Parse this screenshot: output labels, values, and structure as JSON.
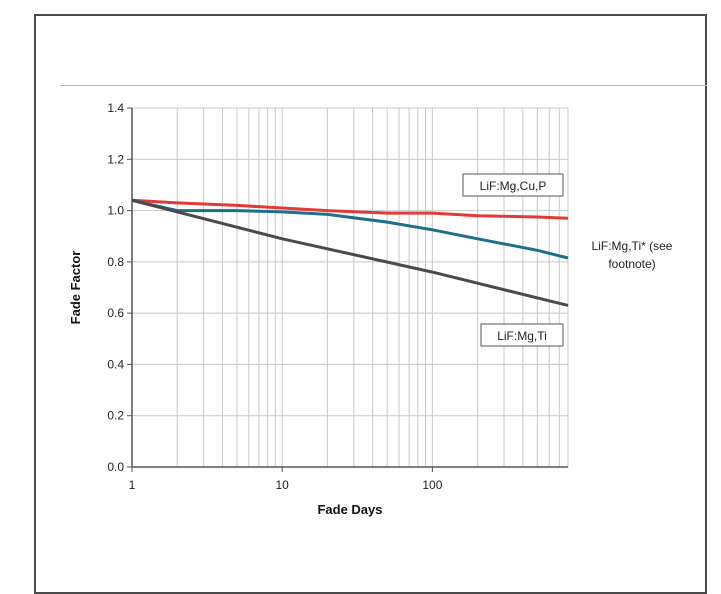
{
  "chart_data": {
    "type": "line",
    "title": "",
    "xlabel": "Fade Days",
    "ylabel": "Fade Factor",
    "x_scale": "log",
    "xlim": [
      1,
      800
    ],
    "ylim": [
      0.0,
      1.4
    ],
    "x_ticks": [
      {
        "value": 1,
        "label": "1"
      },
      {
        "value": 10,
        "label": "10"
      },
      {
        "value": 100,
        "label": "100"
      }
    ],
    "y_ticks": [
      {
        "value": 0.0,
        "label": "0.0"
      },
      {
        "value": 0.2,
        "label": "0.2"
      },
      {
        "value": 0.4,
        "label": "0.4"
      },
      {
        "value": 0.6,
        "label": "0.6"
      },
      {
        "value": 0.8,
        "label": "0.8"
      },
      {
        "value": 1.0,
        "label": "1.0"
      },
      {
        "value": 1.2,
        "label": "1.2"
      },
      {
        "value": 1.4,
        "label": "1.4"
      }
    ],
    "grid": true,
    "series": [
      {
        "name": "LiF:Mg,Cu,P",
        "color": "#e23a36",
        "x": [
          1,
          2,
          5,
          10,
          20,
          50,
          100,
          200,
          500,
          800
        ],
        "y": [
          1.04,
          1.03,
          1.02,
          1.01,
          1.0,
          0.99,
          0.99,
          0.98,
          0.975,
          0.97
        ]
      },
      {
        "name": "LiF:Mg,Ti* (see footnote)",
        "color": "#1f6f8b",
        "x": [
          1,
          2,
          5,
          10,
          20,
          50,
          100,
          200,
          500,
          800
        ],
        "y": [
          1.04,
          1.0,
          1.0,
          0.995,
          0.985,
          0.955,
          0.925,
          0.89,
          0.845,
          0.815
        ]
      },
      {
        "name": "LiF:Mg,Ti",
        "color": "#4a4a4a",
        "x": [
          1,
          10,
          100,
          800
        ],
        "y": [
          1.04,
          0.89,
          0.76,
          0.63
        ]
      }
    ],
    "annotations": [
      {
        "text": "LiF:Mg,Cu,P",
        "boxed": true
      },
      {
        "text_lines": [
          "LiF:Mg,Ti* (see",
          "footnote)"
        ],
        "boxed": false
      },
      {
        "text": "LiF:Mg,Ti",
        "boxed": true
      }
    ]
  }
}
